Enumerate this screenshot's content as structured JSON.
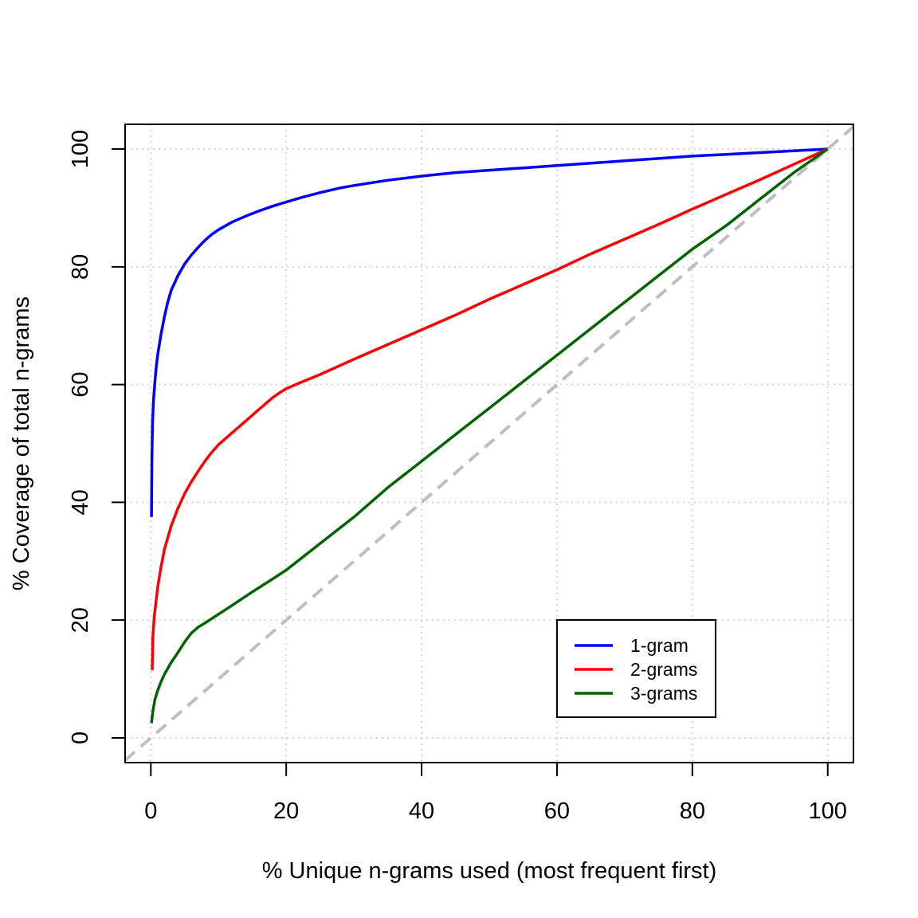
{
  "chart_data": {
    "type": "line",
    "title": "",
    "xlabel": "% Unique n-grams used (most frequent first)",
    "ylabel": "% Coverage of total n-grams",
    "xlim": [
      -3.8,
      103.8
    ],
    "ylim": [
      -4.2,
      104.2
    ],
    "x_ticks": [
      0,
      20,
      40,
      60,
      80,
      100
    ],
    "y_ticks": [
      0,
      20,
      40,
      60,
      80,
      100
    ],
    "grid": true,
    "legend_position": "bottom-right",
    "reference_line": {
      "x": [
        -3.8,
        103.8
      ],
      "y": [
        -3.8,
        103.8
      ],
      "color": "#bebebe",
      "style": "dashed"
    },
    "series": [
      {
        "name": "1-gram",
        "color": "#0000ff",
        "x": [
          0.1,
          0.15,
          0.25,
          0.4,
          0.6,
          0.8,
          1,
          1.5,
          2,
          2.5,
          3,
          4,
          5,
          6,
          7,
          8,
          9,
          10,
          12,
          14,
          16,
          18,
          20,
          22,
          25,
          28,
          30,
          35,
          40,
          45,
          50,
          55,
          60,
          65,
          70,
          75,
          80,
          85,
          90,
          95,
          100
        ],
        "y": [
          37.5,
          47,
          53.5,
          57.5,
          60.5,
          63,
          65,
          68.5,
          71.5,
          74,
          76,
          78.5,
          80.5,
          82,
          83.3,
          84.5,
          85.5,
          86.3,
          87.6,
          88.6,
          89.5,
          90.3,
          91,
          91.7,
          92.6,
          93.4,
          93.8,
          94.7,
          95.4,
          96,
          96.4,
          96.8,
          97.2,
          97.6,
          98,
          98.4,
          98.8,
          99.1,
          99.4,
          99.7,
          100
        ]
      },
      {
        "name": "2-grams",
        "color": "#ff0000",
        "x": [
          0.2,
          0.3,
          0.5,
          1,
          1.5,
          2,
          3,
          4,
          5,
          6,
          7,
          8,
          9,
          10,
          12,
          14,
          16,
          18,
          19,
          20,
          22,
          25,
          30,
          35,
          40,
          45,
          50,
          55,
          60,
          65,
          70,
          75,
          80,
          85,
          90,
          95,
          100
        ],
        "y": [
          11.5,
          17,
          20.5,
          25.5,
          29,
          32,
          36,
          39,
          41.5,
          43.5,
          45.3,
          47,
          48.5,
          49.8,
          51.8,
          53.8,
          55.8,
          57.8,
          58.6,
          59.3,
          60.3,
          61.7,
          64.3,
          66.8,
          69.3,
          71.8,
          74.5,
          77,
          79.5,
          82.2,
          84.7,
          87.2,
          89.8,
          92.3,
          94.8,
          97.4,
          100
        ]
      },
      {
        "name": "3-grams",
        "color": "#006400",
        "x": [
          0.1,
          0.3,
          0.6,
          1,
          1.5,
          2,
          3,
          4,
          5,
          6,
          7,
          8,
          10,
          12,
          15,
          18,
          20,
          25,
          30,
          35,
          40,
          45,
          50,
          55,
          60,
          65,
          70,
          75,
          80,
          85,
          90,
          95,
          100
        ],
        "y": [
          2.5,
          4.5,
          6.5,
          8,
          9.5,
          10.8,
          12.8,
          14.5,
          16.3,
          17.8,
          18.8,
          19.5,
          21,
          22.5,
          24.8,
          27,
          28.5,
          33,
          37.5,
          42.5,
          47,
          51.5,
          56,
          60.5,
          65,
          69.5,
          74,
          78.5,
          83,
          87,
          91.5,
          96,
          100
        ]
      }
    ]
  }
}
